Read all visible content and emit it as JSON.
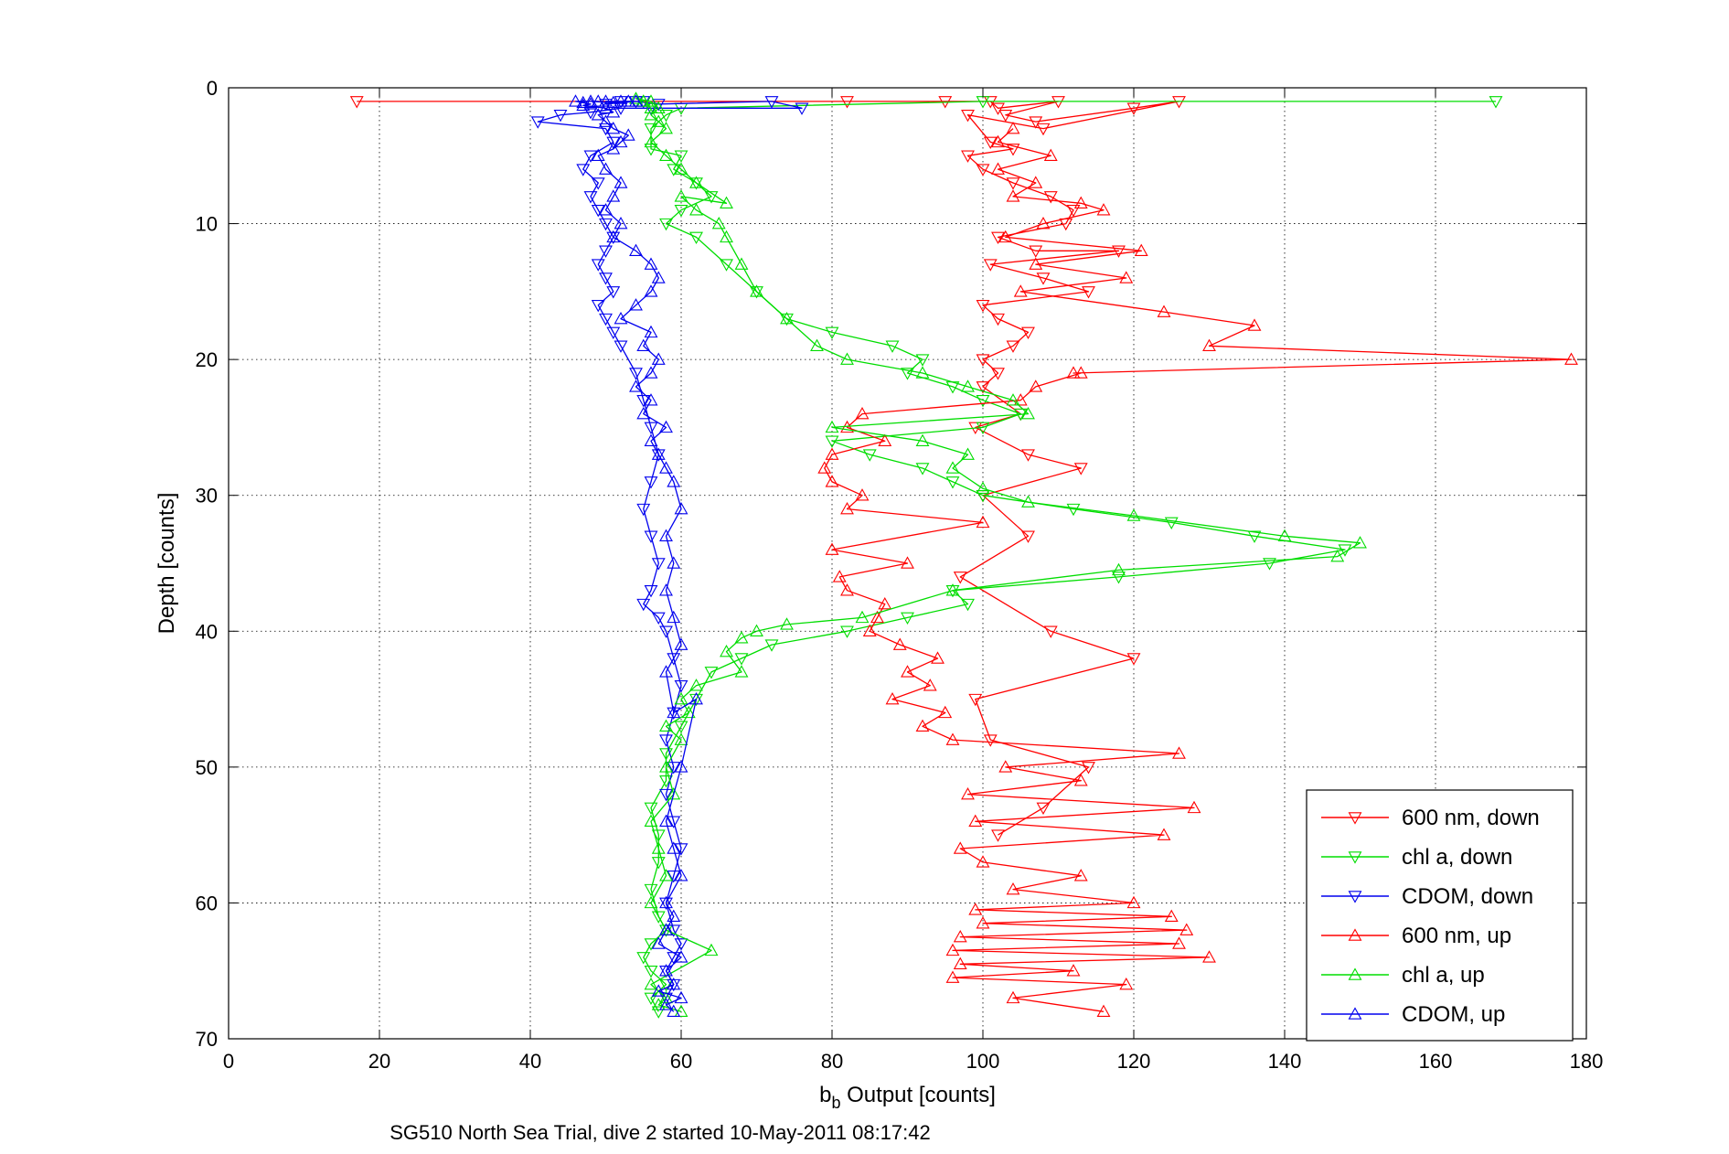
{
  "chart_data": {
    "type": "line",
    "title": "",
    "xlabel_main": "b",
    "xlabel_sub": "b",
    "xlabel_rest": " Output [counts]",
    "ylabel": "Depth [counts]",
    "caption": "SG510 North Sea Trial, dive 2 started 10-May-2011 08:17:42",
    "xlim": [
      0,
      180
    ],
    "ylim": [
      0,
      70
    ],
    "y_reversed": true,
    "grid": true,
    "xticks": [
      0,
      20,
      40,
      60,
      80,
      100,
      120,
      140,
      160,
      180
    ],
    "yticks": [
      0,
      10,
      20,
      30,
      40,
      50,
      60,
      70
    ],
    "legend_position": "bottom-right",
    "series": [
      {
        "name": "600 nm, down",
        "color": "#ff0000",
        "marker": "triangle-down",
        "x": [
          17,
          82,
          95,
          101,
          102,
          110,
          103,
          107,
          120,
          126,
          108,
          98,
          101,
          104,
          98,
          100,
          104,
          109,
          112,
          111,
          102,
          107,
          118,
          101,
          108,
          114,
          100,
          102,
          106,
          104,
          100,
          102,
          100,
          105,
          99,
          106,
          113,
          100,
          106,
          97,
          109,
          120,
          99,
          101,
          114,
          108,
          102
        ],
        "y": [
          1,
          1,
          1,
          1,
          1.5,
          1,
          2,
          2.5,
          1.5,
          1,
          3,
          2,
          4,
          4.5,
          5,
          6,
          7,
          8,
          9,
          10,
          11,
          12,
          12,
          13,
          14,
          15,
          16,
          17,
          18,
          19,
          20,
          21,
          22,
          24,
          25,
          27,
          28,
          30,
          33,
          36,
          40,
          42,
          45,
          48,
          50,
          53,
          55
        ]
      },
      {
        "name": "chl a, down",
        "color": "#00dd00",
        "marker": "triangle-down",
        "x": [
          168,
          100,
          60,
          58,
          56,
          56,
          60,
          59,
          62,
          64,
          60,
          58,
          62,
          66,
          70,
          74,
          80,
          88,
          92,
          90,
          96,
          100,
          105,
          100,
          80,
          85,
          92,
          96,
          100,
          112,
          125,
          136,
          148,
          138,
          118,
          96,
          98,
          90,
          82,
          72,
          68,
          64,
          62,
          60,
          58,
          58,
          56,
          57,
          57,
          56,
          57,
          58,
          56,
          55,
          56,
          58,
          56,
          57
        ],
        "y": [
          1,
          1,
          1.5,
          2,
          3,
          4.5,
          5,
          6,
          7,
          8,
          9,
          10,
          11,
          13,
          15,
          17,
          18,
          19,
          20,
          21,
          22,
          23,
          24,
          25,
          26,
          27,
          28,
          29,
          30,
          31,
          32,
          33,
          34,
          35,
          36,
          37,
          38,
          39,
          40,
          41,
          42,
          43,
          45,
          47,
          49,
          51,
          53,
          55,
          57,
          59,
          61,
          62,
          63,
          64,
          65,
          66,
          67,
          68
        ]
      },
      {
        "name": "CDOM, down",
        "color": "#0000ee",
        "marker": "triangle-down",
        "x": [
          55,
          52,
          50,
          54,
          57,
          72,
          76,
          56,
          52,
          48,
          44,
          41,
          50,
          51,
          48,
          47,
          49,
          48,
          49,
          50,
          51,
          50,
          49,
          50,
          51,
          49,
          50,
          51,
          52,
          54,
          55,
          56,
          57,
          56,
          55,
          56,
          57,
          56,
          55,
          57,
          58,
          59,
          60,
          59,
          58,
          59,
          58,
          59,
          60,
          59,
          58,
          59,
          60,
          59,
          58,
          59,
          58
        ],
        "y": [
          1,
          1,
          1.2,
          1,
          1.2,
          1,
          1.5,
          1.5,
          1.5,
          1.8,
          2,
          2.5,
          3,
          4,
          5,
          6,
          7,
          8,
          9,
          10,
          11,
          12,
          13,
          14,
          15,
          16,
          17,
          18,
          19,
          21,
          23,
          25,
          27,
          29,
          31,
          33,
          35,
          37,
          38,
          39,
          40,
          42,
          44,
          46,
          48,
          50,
          52,
          54,
          56,
          58,
          60,
          62,
          63,
          64,
          65,
          66,
          67
        ]
      },
      {
        "name": "600 nm, up",
        "color": "#ff0000",
        "marker": "triangle-up",
        "x": [
          116,
          104,
          119,
          96,
          112,
          97,
          130,
          96,
          126,
          97,
          127,
          100,
          125,
          99,
          120,
          104,
          113,
          100,
          97,
          124,
          99,
          128,
          98,
          113,
          103,
          126,
          96,
          92,
          95,
          88,
          93,
          90,
          94,
          89,
          85,
          86,
          87,
          82,
          81,
          90,
          80,
          100,
          82,
          84,
          80,
          79,
          80,
          87,
          82,
          84,
          105,
          107,
          113,
          112,
          178,
          130,
          136,
          124,
          105,
          119,
          107,
          121,
          103,
          108,
          116,
          113,
          104,
          107,
          102,
          109,
          102,
          104
        ],
        "y": [
          68,
          67,
          66,
          65.5,
          65,
          64.5,
          64,
          63.5,
          63,
          62.5,
          62,
          61.5,
          61,
          60.5,
          60,
          59,
          58,
          57,
          56,
          55,
          54,
          53,
          52,
          51,
          50,
          49,
          48,
          47,
          46,
          45,
          44,
          43,
          42,
          41,
          40,
          39,
          38,
          37,
          36,
          35,
          34,
          32,
          31,
          30,
          29,
          28,
          27,
          26,
          25,
          24,
          23,
          22,
          21,
          21,
          20,
          19,
          17.5,
          16.5,
          15,
          14,
          13,
          12,
          11,
          10,
          9,
          8.5,
          8,
          7,
          6,
          5,
          4,
          3
        ]
      },
      {
        "name": "chl a, up",
        "color": "#00dd00",
        "marker": "triangle-up",
        "x": [
          60,
          57,
          58,
          56,
          64,
          58,
          56,
          58,
          57,
          56,
          59,
          58,
          60,
          58,
          61,
          60,
          62,
          68,
          66,
          68,
          70,
          74,
          84,
          96,
          118,
          147,
          150,
          140,
          120,
          106,
          100,
          96,
          98,
          92,
          80,
          106,
          104,
          98,
          92,
          82,
          78,
          74,
          70,
          68,
          66,
          65,
          62,
          60,
          66,
          62,
          60,
          58,
          56,
          58,
          57,
          56,
          57,
          56,
          54,
          55,
          56,
          55
        ],
        "y": [
          68,
          67.5,
          67,
          66,
          63.5,
          62,
          60,
          58,
          56,
          54,
          52,
          50,
          48,
          47,
          46,
          45,
          44,
          43,
          41.5,
          40.5,
          40,
          39.5,
          39,
          37,
          35.5,
          34.5,
          33.5,
          33,
          31.5,
          30.5,
          29.5,
          28,
          27,
          26,
          25,
          24,
          23,
          22,
          21,
          20,
          19,
          17,
          15,
          13,
          11,
          10,
          9,
          8,
          8.5,
          7,
          6,
          5,
          4,
          3,
          2.5,
          2,
          1.5,
          1,
          0.8,
          1,
          1.5,
          1
        ]
      },
      {
        "name": "CDOM, up",
        "color": "#0000ee",
        "marker": "triangle-up",
        "x": [
          59,
          58,
          60,
          57,
          59,
          58,
          60,
          57,
          58,
          59,
          58,
          60,
          59,
          58,
          60,
          62,
          59,
          58,
          60,
          59,
          58,
          59,
          58,
          60,
          59,
          58,
          57,
          56,
          58,
          55,
          56,
          54,
          56,
          57,
          55,
          56,
          52,
          54,
          56,
          57,
          56,
          54,
          51,
          52,
          50,
          51,
          52,
          50,
          49,
          51,
          52,
          53,
          51,
          50,
          49,
          51,
          50,
          47,
          48,
          47,
          46,
          49,
          48,
          51,
          50,
          52,
          53,
          54
        ],
        "y": [
          68,
          67.5,
          67,
          66.5,
          66,
          65,
          64,
          63,
          62,
          61,
          60,
          58,
          56,
          54,
          50,
          45,
          46,
          43,
          41,
          39,
          37,
          35,
          33,
          31,
          29,
          28,
          27,
          26,
          25,
          24,
          23,
          22,
          21,
          20,
          19,
          18,
          17,
          16,
          15,
          14,
          13,
          12,
          11,
          10,
          9,
          8,
          7,
          6,
          5,
          4.5,
          4,
          3.5,
          3,
          2.5,
          2,
          1.8,
          1.5,
          1.3,
          1.2,
          1.1,
          1,
          1,
          1,
          1.1,
          1,
          1,
          1,
          1
        ]
      }
    ]
  }
}
